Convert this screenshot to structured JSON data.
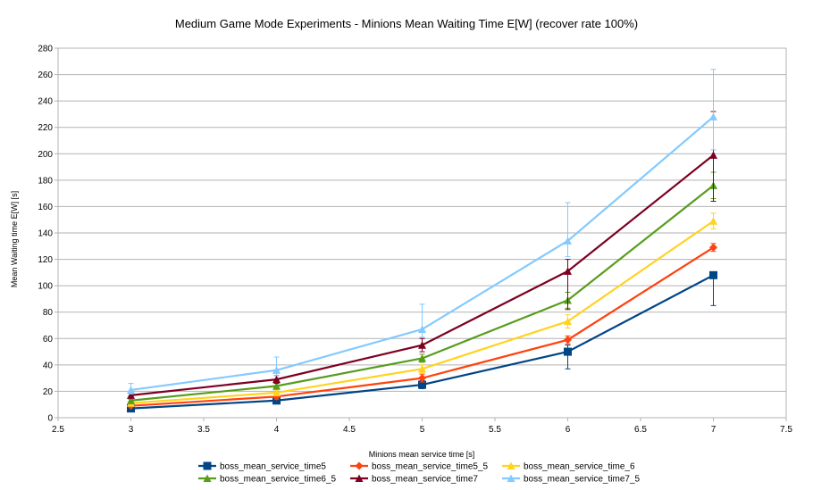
{
  "chart_data": {
    "type": "line",
    "title": "Medium Game Mode Experiments - Minions Mean Waiting Time E[W] (recover rate 100%)",
    "xlabel": "Minions mean service time [s]",
    "ylabel": "Mean Waiting time E[W] [s]",
    "xlim": [
      2.5,
      7.5
    ],
    "ylim": [
      0,
      280
    ],
    "xticks": [
      "2.5",
      "3",
      "3.5",
      "4",
      "4.5",
      "5",
      "5.5",
      "6",
      "6.5",
      "7",
      "7.5"
    ],
    "yticks": [
      "0",
      "20",
      "40",
      "60",
      "80",
      "100",
      "120",
      "140",
      "160",
      "180",
      "200",
      "220",
      "240",
      "260",
      "280"
    ],
    "grid": "horizontal",
    "legend_position": "bottom",
    "x": [
      3,
      4,
      5,
      6,
      7
    ],
    "series": [
      {
        "name": "boss_mean_service_time5",
        "color": "#004586",
        "marker": "square",
        "values": [
          7,
          13,
          25,
          50,
          108
        ],
        "err_low": [
          1,
          2,
          3,
          13,
          23
        ],
        "err_high": [
          1,
          2,
          3,
          5,
          1
        ]
      },
      {
        "name": "boss_mean_service_time5_5",
        "color": "#ff420e",
        "marker": "diamond",
        "values": [
          9,
          16,
          30,
          59,
          129
        ],
        "err_low": [
          1,
          2,
          3,
          3,
          3
        ],
        "err_high": [
          1,
          2,
          3,
          3,
          3
        ]
      },
      {
        "name": "boss_mean_service_time_6",
        "color": "#ffd320",
        "marker": "triangle",
        "values": [
          11,
          19,
          37,
          73,
          149
        ],
        "err_low": [
          1,
          2,
          3,
          5,
          6
        ],
        "err_high": [
          1,
          2,
          3,
          5,
          6
        ]
      },
      {
        "name": "boss_mean_service_time6_5",
        "color": "#579d1c",
        "marker": "triangle",
        "values": [
          13,
          24,
          45,
          89,
          176
        ],
        "err_low": [
          1,
          2,
          3,
          6,
          10
        ],
        "err_high": [
          1,
          2,
          3,
          6,
          10
        ]
      },
      {
        "name": "boss_mean_service_time7",
        "color": "#7e0021",
        "marker": "triangle",
        "values": [
          17,
          29,
          55,
          111,
          199
        ],
        "err_low": [
          2,
          3,
          5,
          29,
          35
        ],
        "err_high": [
          2,
          3,
          5,
          9,
          33
        ]
      },
      {
        "name": "boss_mean_service_time7_5",
        "color": "#83caff",
        "marker": "triangle",
        "values": [
          21,
          36,
          67,
          134,
          228
        ],
        "err_low": [
          3,
          4,
          6,
          12,
          25
        ],
        "err_high": [
          5,
          10,
          19,
          29,
          36
        ]
      }
    ]
  }
}
